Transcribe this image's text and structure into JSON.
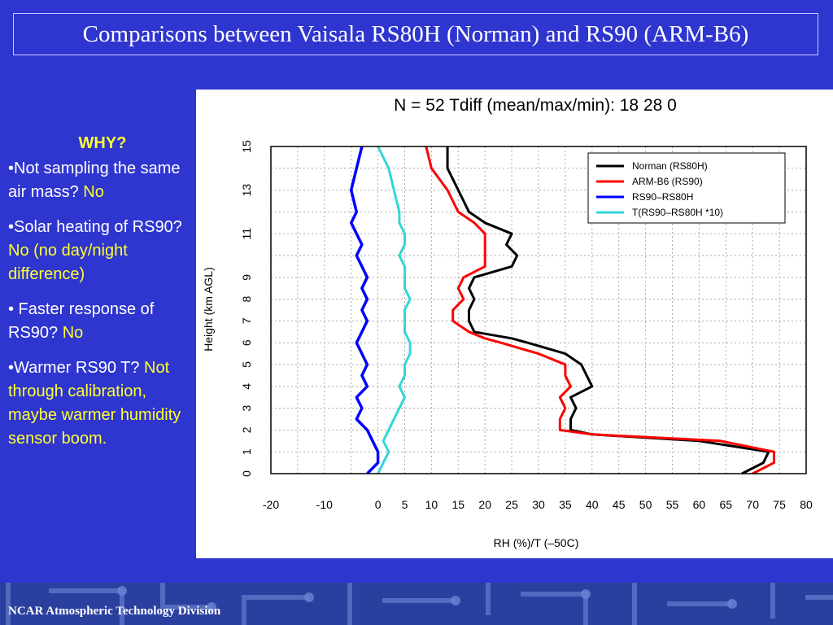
{
  "slide": {
    "title": "Comparisons between Vaisala RS80H (Norman) and RS90 (ARM-B6)",
    "footer": "NCAR Atmospheric Technology Division",
    "colors": {
      "background": "#2f35cf",
      "answer": "#ffff33"
    }
  },
  "why": {
    "heading": "WHY?",
    "points": [
      {
        "text": "•Not sampling the same air mass? ",
        "answer": "No"
      },
      {
        "text": "•Solar heating of RS90? ",
        "answer": "No (no day/night difference)"
      },
      {
        "text": "• Faster response of RS90? ",
        "answer": "No"
      },
      {
        "text": "•Warmer RS90 T? ",
        "answer": "Not through calibration, maybe warmer humidity sensor boom."
      }
    ]
  },
  "chart_data": {
    "type": "line",
    "title": "N = 52 Tdiff (mean/max/min): 18 28 0",
    "xlabel": "RH (%)/T (–50C)",
    "ylabel": "Height (km AGL)",
    "xlim": [
      -20,
      80
    ],
    "ylim": [
      0,
      15
    ],
    "xticks": [
      -20,
      -10,
      0,
      5,
      10,
      15,
      20,
      25,
      30,
      35,
      40,
      45,
      50,
      55,
      60,
      65,
      70,
      75,
      80
    ],
    "yticks": [
      0,
      1,
      2,
      3,
      4,
      5,
      6,
      7,
      8,
      9,
      11,
      13,
      15
    ],
    "grid": true,
    "legend_position": "top-right",
    "series": [
      {
        "name": "Norman (RS80H)",
        "color": "#000000",
        "points": [
          [
            68,
            0
          ],
          [
            72,
            0.5
          ],
          [
            73,
            1
          ],
          [
            60,
            1.5
          ],
          [
            40,
            1.8
          ],
          [
            36,
            2
          ],
          [
            36,
            2.5
          ],
          [
            37,
            3
          ],
          [
            36,
            3.5
          ],
          [
            40,
            4
          ],
          [
            39,
            4.5
          ],
          [
            38,
            5
          ],
          [
            35,
            5.5
          ],
          [
            28,
            6
          ],
          [
            25,
            6.2
          ],
          [
            18,
            6.5
          ],
          [
            17,
            7
          ],
          [
            17,
            7.5
          ],
          [
            18,
            8
          ],
          [
            17,
            8.5
          ],
          [
            18,
            9
          ],
          [
            25,
            9.5
          ],
          [
            26,
            10
          ],
          [
            24,
            10.5
          ],
          [
            25,
            11
          ],
          [
            20,
            11.5
          ],
          [
            17,
            12
          ],
          [
            15,
            13
          ],
          [
            13,
            14
          ],
          [
            13,
            15
          ]
        ]
      },
      {
        "name": "ARM-B6 (RS90)",
        "color": "#ff0000",
        "points": [
          [
            70,
            0
          ],
          [
            74,
            0.5
          ],
          [
            74,
            1
          ],
          [
            64,
            1.5
          ],
          [
            40,
            1.8
          ],
          [
            34,
            2
          ],
          [
            34,
            2.5
          ],
          [
            35,
            3
          ],
          [
            34,
            3.5
          ],
          [
            36,
            4
          ],
          [
            35,
            4.5
          ],
          [
            35,
            5
          ],
          [
            30,
            5.5
          ],
          [
            23,
            6
          ],
          [
            20,
            6.2
          ],
          [
            17,
            6.5
          ],
          [
            14,
            7
          ],
          [
            14,
            7.5
          ],
          [
            16,
            8
          ],
          [
            15,
            8.5
          ],
          [
            16,
            9
          ],
          [
            20,
            9.5
          ],
          [
            20,
            10
          ],
          [
            20,
            10.5
          ],
          [
            20,
            11
          ],
          [
            18,
            11.5
          ],
          [
            15,
            12
          ],
          [
            13,
            13
          ],
          [
            10,
            14
          ],
          [
            9,
            15
          ]
        ]
      },
      {
        "name": "RS90–RS80H",
        "color": "#0000ff",
        "points": [
          [
            -2,
            0
          ],
          [
            0,
            0.5
          ],
          [
            0,
            1
          ],
          [
            -1,
            1.5
          ],
          [
            -2,
            2
          ],
          [
            -4,
            2.5
          ],
          [
            -3,
            3
          ],
          [
            -4,
            3.5
          ],
          [
            -2,
            4
          ],
          [
            -3,
            4.5
          ],
          [
            -2,
            5
          ],
          [
            -3,
            5.5
          ],
          [
            -4,
            6
          ],
          [
            -3,
            6.5
          ],
          [
            -2,
            7
          ],
          [
            -3,
            7.5
          ],
          [
            -2,
            8
          ],
          [
            -3,
            8.5
          ],
          [
            -2,
            9
          ],
          [
            -3,
            9.5
          ],
          [
            -4,
            10
          ],
          [
            -3,
            10.5
          ],
          [
            -4,
            11
          ],
          [
            -5,
            11.5
          ],
          [
            -4,
            12
          ],
          [
            -5,
            13
          ],
          [
            -4,
            14
          ],
          [
            -3,
            15
          ]
        ]
      },
      {
        "name": "T(RS90–RS80H *10)",
        "color": "#33d6d6",
        "points": [
          [
            0,
            0
          ],
          [
            1,
            0.5
          ],
          [
            2,
            1
          ],
          [
            1,
            1.5
          ],
          [
            2,
            2
          ],
          [
            3,
            2.5
          ],
          [
            4,
            3
          ],
          [
            5,
            3.5
          ],
          [
            4,
            4
          ],
          [
            5,
            4.5
          ],
          [
            5,
            5
          ],
          [
            6,
            5.5
          ],
          [
            6,
            6
          ],
          [
            5,
            6.5
          ],
          [
            5,
            7
          ],
          [
            5,
            7.5
          ],
          [
            6,
            8
          ],
          [
            5,
            8.5
          ],
          [
            5,
            9
          ],
          [
            5,
            9.5
          ],
          [
            4,
            10
          ],
          [
            5,
            10.5
          ],
          [
            5,
            11
          ],
          [
            4,
            11.5
          ],
          [
            4,
            12
          ],
          [
            3,
            13
          ],
          [
            2,
            14
          ],
          [
            0,
            15
          ]
        ]
      }
    ]
  }
}
